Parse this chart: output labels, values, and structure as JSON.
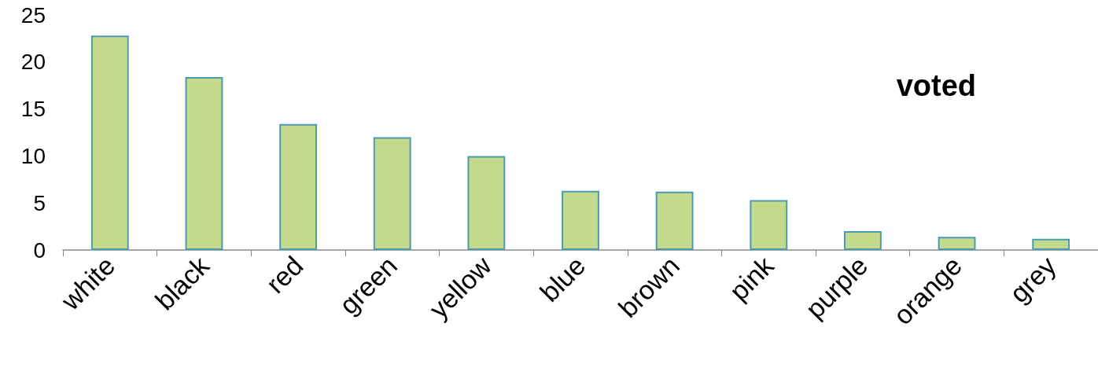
{
  "chart_data": {
    "type": "bar",
    "categories": [
      "white",
      "black",
      "red",
      "green",
      "yellow",
      "blue",
      "brown",
      "pink",
      "purple",
      "orange",
      "grey"
    ],
    "series": [
      {
        "name": "voted",
        "color": "#c3d98c",
        "values": [
          22.8,
          18.4,
          13.4,
          12.0,
          10.0,
          6.3,
          6.2,
          5.3,
          2.0,
          1.4,
          1.2
        ]
      }
    ],
    "ylim": [
      0,
      25
    ],
    "yticks": [
      0,
      5,
      10,
      15,
      20,
      25
    ],
    "grid": false,
    "legend": "top right"
  }
}
